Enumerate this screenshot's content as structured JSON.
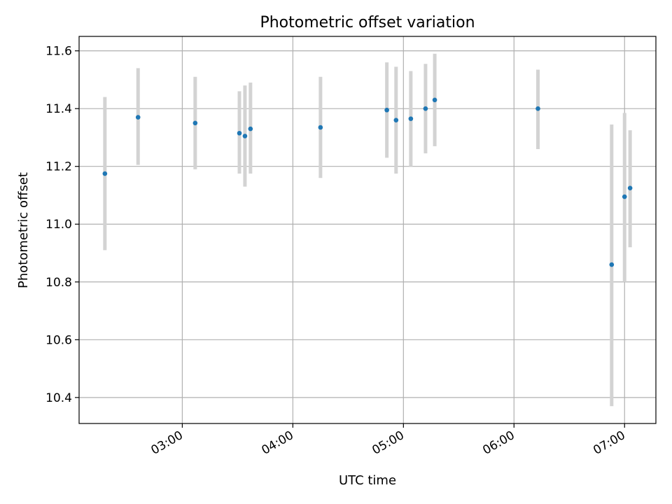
{
  "chart_data": {
    "type": "scatter",
    "title": "Photometric offset variation",
    "xlabel": "UTC time",
    "ylabel": "Photometric offset",
    "x_axis_type": "time",
    "xlim": [
      "02:04",
      "07:17"
    ],
    "ylim": [
      10.31,
      11.65
    ],
    "x_ticks": [
      "03:00",
      "04:00",
      "05:00",
      "06:00",
      "07:00"
    ],
    "y_ticks": [
      10.4,
      10.6,
      10.8,
      11.0,
      11.2,
      11.4,
      11.6
    ],
    "y_tick_labels": [
      "10.4",
      "10.6",
      "10.8",
      "11.0",
      "11.2",
      "11.4",
      "11.6"
    ],
    "grid": true,
    "legend": false,
    "point_color": "#1f77b4",
    "error_bar_color": "#d3d3d3",
    "points": [
      {
        "time": "02:18",
        "y": 11.175,
        "y_low": 10.91,
        "y_high": 11.44
      },
      {
        "time": "02:36",
        "y": 11.37,
        "y_low": 11.205,
        "y_high": 11.54
      },
      {
        "time": "03:07",
        "y": 11.35,
        "y_low": 11.19,
        "y_high": 11.51
      },
      {
        "time": "03:31",
        "y": 11.315,
        "y_low": 11.175,
        "y_high": 11.46
      },
      {
        "time": "03:34",
        "y": 11.305,
        "y_low": 11.13,
        "y_high": 11.48
      },
      {
        "time": "03:37",
        "y": 11.33,
        "y_low": 11.175,
        "y_high": 11.49
      },
      {
        "time": "04:15",
        "y": 11.335,
        "y_low": 11.16,
        "y_high": 11.51
      },
      {
        "time": "04:51",
        "y": 11.395,
        "y_low": 11.23,
        "y_high": 11.56
      },
      {
        "time": "04:56",
        "y": 11.36,
        "y_low": 11.175,
        "y_high": 11.545
      },
      {
        "time": "05:04",
        "y": 11.365,
        "y_low": 11.2,
        "y_high": 11.53
      },
      {
        "time": "05:12",
        "y": 11.4,
        "y_low": 11.245,
        "y_high": 11.555
      },
      {
        "time": "05:17",
        "y": 11.43,
        "y_low": 11.27,
        "y_high": 11.59
      },
      {
        "time": "06:13",
        "y": 11.4,
        "y_low": 11.26,
        "y_high": 11.535
      },
      {
        "time": "06:53",
        "y": 10.86,
        "y_low": 10.37,
        "y_high": 11.345
      },
      {
        "time": "07:00",
        "y": 11.095,
        "y_low": 10.8,
        "y_high": 11.385
      },
      {
        "time": "07:03",
        "y": 11.125,
        "y_low": 10.92,
        "y_high": 11.325
      }
    ]
  }
}
